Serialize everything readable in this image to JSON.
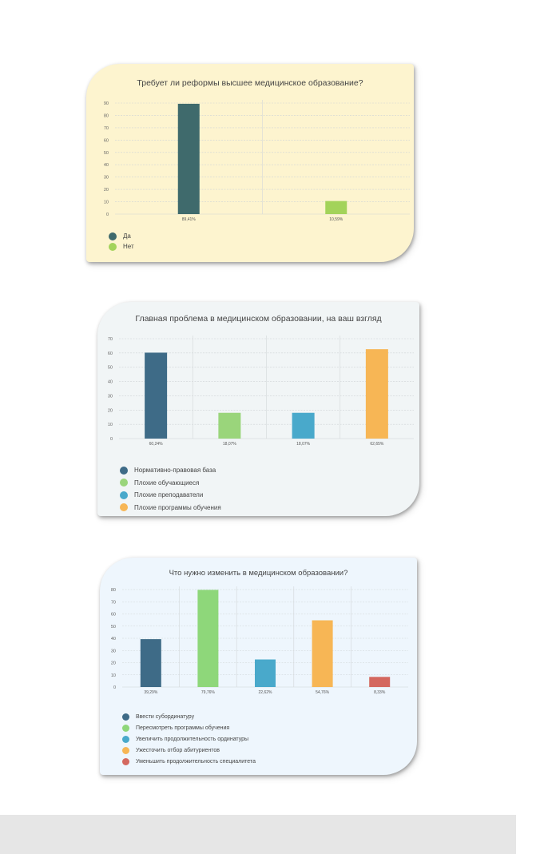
{
  "chart_data": [
    {
      "type": "bar",
      "title": "Требует ли реформы высшее медицинское образование?",
      "categories": [
        "Да",
        "Нет"
      ],
      "values": [
        89.41,
        10.59
      ],
      "value_labels": [
        "89,41%",
        "10,59%"
      ],
      "ylim": [
        0,
        90
      ],
      "yticks": [
        0,
        10,
        20,
        30,
        40,
        50,
        60,
        70,
        80,
        90
      ],
      "colors": [
        "#3f6a6c",
        "#a3d35a"
      ],
      "legend": [
        "Да",
        "Нет"
      ],
      "legend_position": "bottom-left",
      "grid": true,
      "background": "#fdf4cf"
    },
    {
      "type": "bar",
      "title": "Главная проблема в медицинском образовании, на ваш взгляд",
      "categories": [
        "Нормативно-правовая база",
        "Плохие обучающиеся",
        "Плохие преподаватели",
        "Плохие программы обучения"
      ],
      "values": [
        60.24,
        18.07,
        18.07,
        62.65
      ],
      "value_labels": [
        "60,24%",
        "18,07%",
        "18,07%",
        "62,65%"
      ],
      "ylim": [
        0,
        70
      ],
      "yticks": [
        0,
        10,
        20,
        30,
        40,
        50,
        60,
        70
      ],
      "colors": [
        "#3e6b87",
        "#9ad57b",
        "#49a9cb",
        "#f7b655"
      ],
      "legend": [
        "Нормативно-правовая база",
        "Плохие обучающиеся",
        "Плохие преподаватели",
        "Плохие программы обучения"
      ],
      "legend_position": "bottom-left",
      "grid": true,
      "background": "#f1f5f6"
    },
    {
      "type": "bar",
      "title": "Что нужно изменить в медицинском образовании?",
      "categories": [
        "Ввести субординатуру",
        "Пересмотреть программы обучения",
        "Увеличить продолжительность ординатуры",
        "Ужесточить отбор абитуриентов",
        "Уменьшить продолжительность специалитета"
      ],
      "values": [
        39.29,
        79.76,
        22.62,
        54.76,
        8.33
      ],
      "value_labels": [
        "39,29%",
        "79,76%",
        "22,62%",
        "54,76%",
        "8,33%"
      ],
      "ylim": [
        0,
        80
      ],
      "yticks": [
        0,
        10,
        20,
        30,
        40,
        50,
        60,
        70,
        80
      ],
      "colors": [
        "#3e6b87",
        "#8ed77a",
        "#49a9cb",
        "#f7b655",
        "#d4685f"
      ],
      "legend": [
        "Ввести субординатуру",
        "Пересмотреть программы обучения",
        "Увеличить продолжительность ординатуры",
        "Ужесточить отбор абитуриентов",
        "Уменьшить продолжительность специалитета"
      ],
      "legend_position": "bottom-left",
      "grid": true,
      "background": "#eef6fd"
    }
  ]
}
